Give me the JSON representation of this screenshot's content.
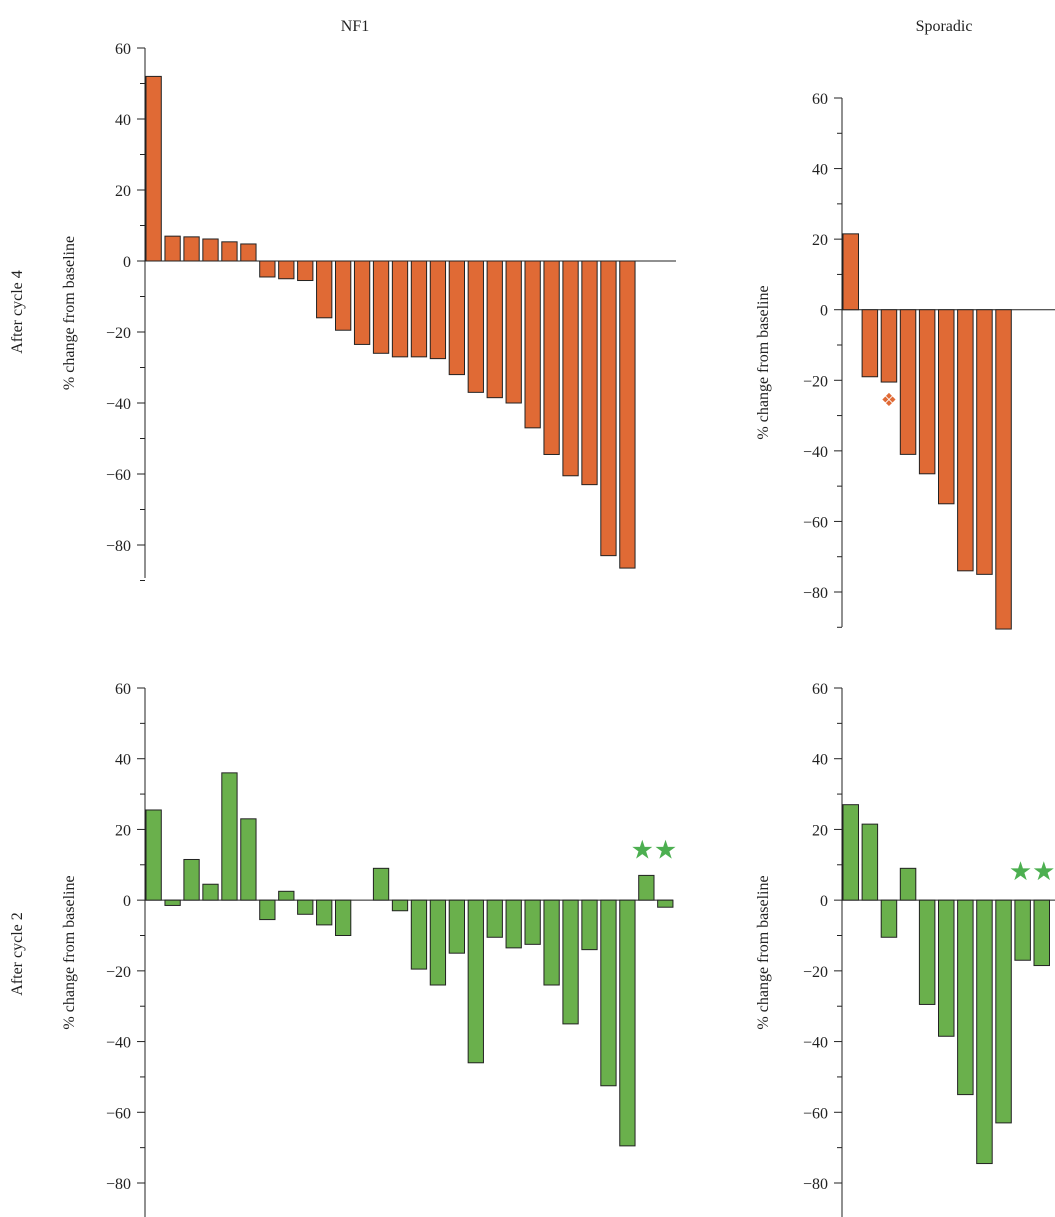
{
  "figure": {
    "column_titles": [
      "NF1",
      "Sporadic"
    ],
    "row_titles": [
      "After cycle 4",
      "After cycle 2"
    ]
  },
  "colors": {
    "cycle4_bar": "#e06a35",
    "cycle2_bar": "#6ab04c",
    "bar_stroke": "#222222",
    "axis": "#222222",
    "star": "#4caf50",
    "diamond": "#e06a35"
  },
  "chart_data": [
    {
      "id": "nf1_cycle4",
      "type": "bar",
      "column": "NF1",
      "row": "After cycle 4",
      "ylabel": "% change from baseline",
      "ylim": [
        -90,
        60
      ],
      "yticks": [
        60,
        40,
        20,
        0,
        -20,
        -40,
        -60,
        -80
      ],
      "grid": false,
      "color": "#e06a35",
      "values": [
        52,
        7,
        6.8,
        6.2,
        5.4,
        4.8,
        -4.5,
        -5,
        -5.5,
        -16,
        -19.5,
        -23.5,
        -26,
        -27,
        -27,
        -27.5,
        -32,
        -37,
        -38.5,
        -40,
        -47,
        -54.5,
        -60.5,
        -63,
        -83,
        -86.5
      ],
      "annotations": []
    },
    {
      "id": "sporadic_cycle4",
      "type": "bar",
      "column": "Sporadic",
      "row": "After cycle 4",
      "ylabel": "% change from baseline",
      "ylim": [
        -90,
        60
      ],
      "yticks": [
        60,
        40,
        20,
        0,
        -20,
        -40,
        -60,
        -80
      ],
      "grid": false,
      "color": "#e06a35",
      "values": [
        21.5,
        -19,
        -20.5,
        -41,
        -46.5,
        -55,
        -74,
        -75,
        -90.5
      ],
      "annotations": [
        {
          "symbol": "❖",
          "bar_index": 2,
          "y": -25
        }
      ]
    },
    {
      "id": "nf1_cycle2",
      "type": "bar",
      "column": "NF1",
      "row": "After cycle 2",
      "ylabel": "% change from baseline",
      "ylim": [
        -90,
        60
      ],
      "yticks": [
        60,
        40,
        20,
        0,
        -20,
        -40,
        -60,
        -80
      ],
      "grid": false,
      "color": "#6ab04c",
      "values": [
        25.5,
        -1.5,
        11.5,
        4.5,
        36,
        23,
        -5.5,
        2.5,
        -4,
        -7,
        -10,
        null,
        9,
        -3,
        -19.5,
        -24,
        -15,
        -46,
        -10.5,
        -13.5,
        -12.5,
        -24,
        -35,
        -14,
        -52.5,
        -69.5,
        7,
        -2
      ],
      "annotations": [
        {
          "symbol": "★★",
          "bar_index": 26.4,
          "y": 14
        }
      ]
    },
    {
      "id": "sporadic_cycle2",
      "type": "bar",
      "column": "Sporadic",
      "row": "After cycle 2",
      "ylabel": "% change from baseline",
      "ylim": [
        -90,
        60
      ],
      "yticks": [
        60,
        40,
        20,
        0,
        -20,
        -40,
        -60,
        -80
      ],
      "grid": false,
      "color": "#6ab04c",
      "values": [
        27,
        21.5,
        -10.5,
        9,
        -29.5,
        -38.5,
        -55,
        -74.5,
        -63,
        -17,
        -18.5
      ],
      "annotations": [
        {
          "symbol": "★★",
          "bar_index": 9.5,
          "y": 8
        }
      ]
    }
  ]
}
